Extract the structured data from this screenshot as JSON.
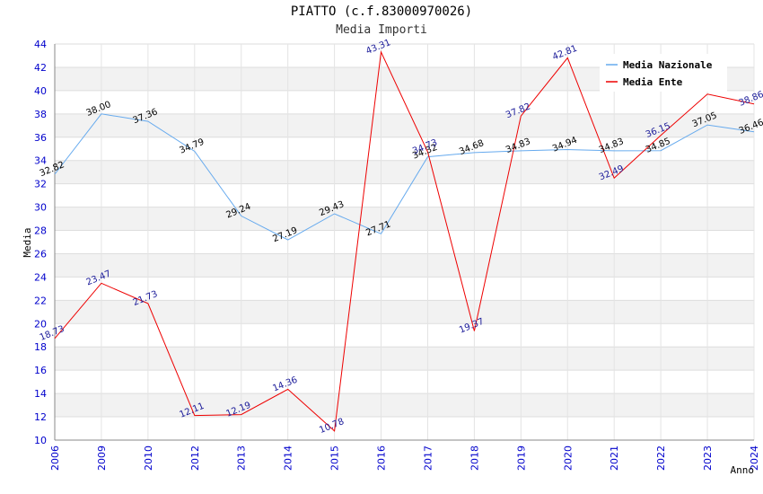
{
  "chart_data": {
    "type": "line",
    "title": "PIATTO (c.f.83000970026)",
    "subtitle": "Media Importi",
    "xlabel": "Anno",
    "ylabel": "Media",
    "categories": [
      "2006",
      "2009",
      "2010",
      "2012",
      "2013",
      "2014",
      "2015",
      "2016",
      "2017",
      "2018",
      "2019",
      "2020",
      "2021",
      "2022",
      "2023",
      "2024"
    ],
    "ylim": [
      10,
      44
    ],
    "yticks": [
      10,
      12,
      14,
      16,
      18,
      20,
      22,
      24,
      26,
      28,
      30,
      32,
      34,
      36,
      38,
      40,
      42,
      44
    ],
    "grid": true,
    "legend_position": "top-right",
    "series": [
      {
        "name": "Media Nazionale",
        "color": "#66aaee",
        "values": [
          32.82,
          38.0,
          37.36,
          34.79,
          29.24,
          27.19,
          29.43,
          27.71,
          34.32,
          34.68,
          34.83,
          34.94,
          34.83,
          34.85,
          37.05,
          36.46
        ],
        "labels": [
          "32.82",
          "38.00",
          "37.36",
          "34.79",
          "29.24",
          "27.19",
          "29.43",
          "27.71",
          "34.32",
          "34.68",
          "34.83",
          "34.94",
          "34.83",
          "34.85",
          "37.05",
          "36.46"
        ]
      },
      {
        "name": "Media Ente",
        "color": "#ee0000",
        "values": [
          18.73,
          23.47,
          21.73,
          12.11,
          12.19,
          14.36,
          10.78,
          43.31,
          34.73,
          19.37,
          37.82,
          42.81,
          32.49,
          36.15,
          39.7,
          38.86
        ],
        "labels": [
          "18.73",
          "23.47",
          "21.73",
          "12.11",
          "12.19",
          "14.36",
          "10.78",
          "43.31",
          "34.73",
          "19.37",
          "37.82",
          "42.81",
          "32.49",
          "36.15",
          "",
          "38.86"
        ]
      }
    ]
  }
}
